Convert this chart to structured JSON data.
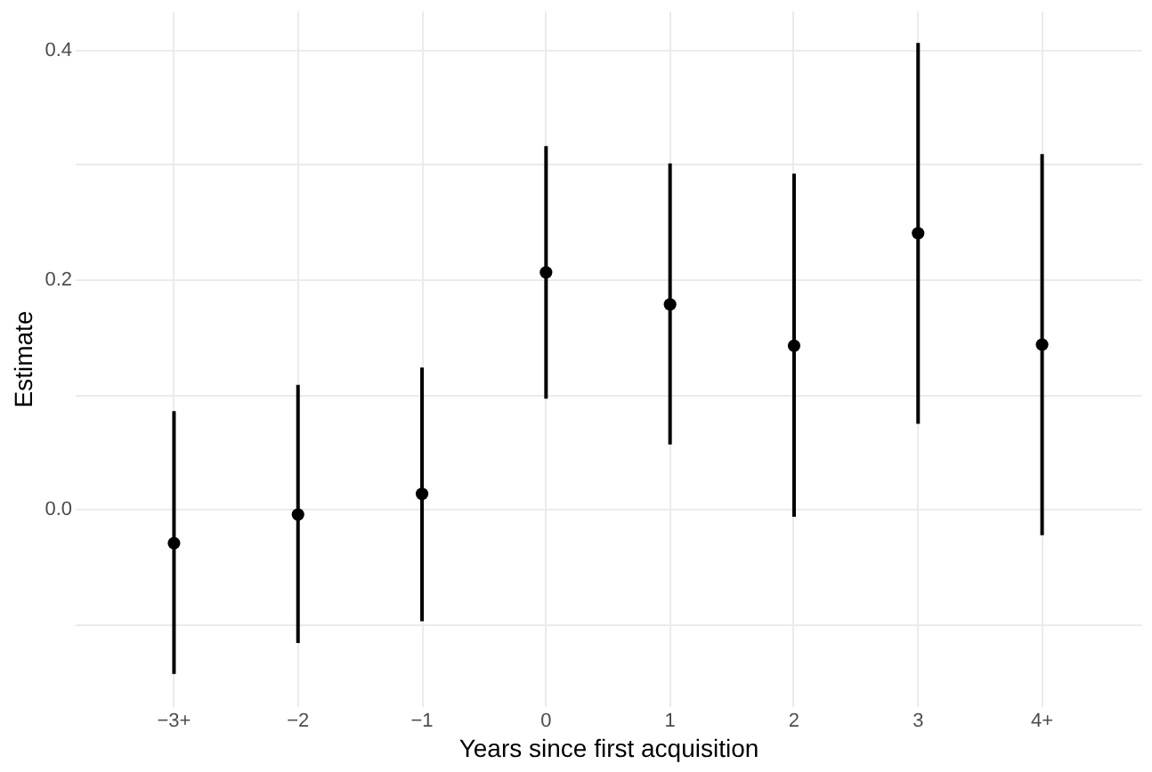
{
  "chart_data": {
    "type": "scatter",
    "xlabel": "Years since first acquisition",
    "ylabel": "Estimate",
    "categories": [
      "−3+",
      "−2",
      "−1",
      "0",
      "1",
      "2",
      "3",
      "4+"
    ],
    "series": [
      {
        "color": "#000000",
        "values": [
          -0.03,
          -0.005,
          0.013,
          0.206,
          0.178,
          0.142,
          0.24,
          0.143
        ],
        "errors": [
          [
            -0.144,
            0.085
          ],
          [
            -0.117,
            0.108
          ],
          [
            -0.098,
            0.123
          ],
          [
            0.096,
            0.316
          ],
          [
            0.056,
            0.301
          ],
          [
            -0.007,
            0.292
          ],
          [
            0.074,
            0.406
          ],
          [
            -0.023,
            0.309
          ]
        ]
      }
    ],
    "ylim": [
      -0.172,
      0.434
    ],
    "yticks": [
      {
        "value": -0.1,
        "label": null
      },
      {
        "value": 0,
        "label": "0.0"
      },
      {
        "value": 0.1,
        "label": null
      },
      {
        "value": 0.2,
        "label": "0.2"
      },
      {
        "value": 0.3,
        "label": null
      },
      {
        "value": 0.4,
        "label": "0.4"
      }
    ],
    "grid": true,
    "marker": "circle"
  }
}
